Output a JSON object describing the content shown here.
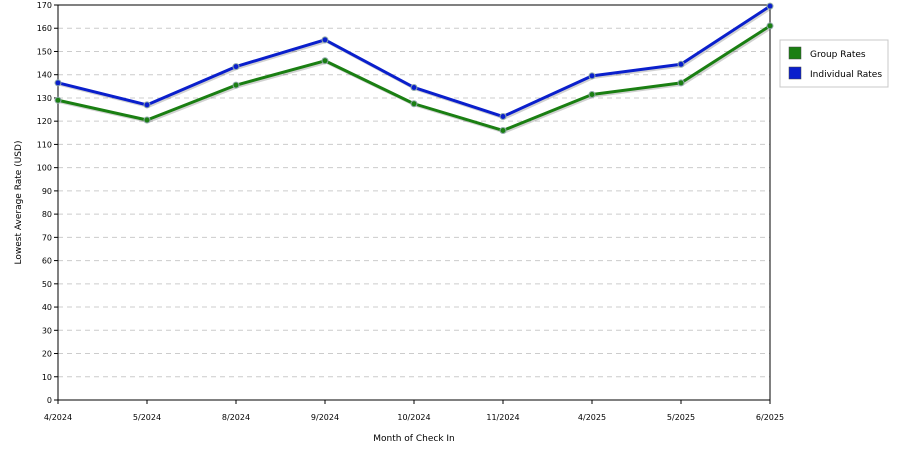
{
  "chart_data": {
    "type": "line",
    "title": "",
    "xlabel": "Month of Check In",
    "ylabel": "Lowest Average Rate (USD)",
    "categories": [
      "4/2024",
      "5/2024",
      "8/2024",
      "9/2024",
      "10/2024",
      "11/2024",
      "4/2025",
      "5/2025",
      "6/2025"
    ],
    "ylim": [
      0,
      170
    ],
    "yticks": [
      0,
      10,
      20,
      30,
      40,
      50,
      60,
      70,
      80,
      90,
      100,
      110,
      120,
      130,
      140,
      150,
      160,
      170
    ],
    "grid": true,
    "legend": "right",
    "series": [
      {
        "name": "Group Rates",
        "color": "#1a7f12",
        "values": [
          129,
          120.5,
          135.5,
          146,
          127.5,
          116,
          131.5,
          136.5,
          161
        ]
      },
      {
        "name": "Individual Rates",
        "color": "#0a1fcc",
        "values": [
          136.5,
          127,
          143.5,
          155,
          134.5,
          122,
          139.5,
          144.5,
          169.5
        ]
      }
    ]
  }
}
